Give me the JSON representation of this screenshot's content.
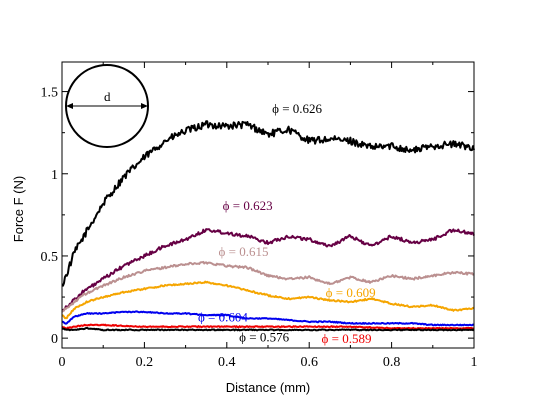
{
  "chart_data": {
    "type": "line",
    "title": "",
    "xlabel": "Distance (mm)",
    "ylabel": "Force F (N)",
    "xlim": [
      0,
      1
    ],
    "ylim": [
      -0.06,
      1.68
    ],
    "xticks": [
      0,
      0.2,
      0.4,
      0.6,
      0.8,
      1
    ],
    "xtick_labels": [
      "0",
      "0.2",
      "0.4",
      "0.6",
      "0.8",
      "1"
    ],
    "yticks": [
      0,
      0.5,
      1,
      1.5
    ],
    "ytick_labels": [
      "0",
      "0.5",
      "1",
      "1.5"
    ],
    "grid": false,
    "legend": "none",
    "inset": {
      "label": "d"
    },
    "series": [
      {
        "name": "ϕ = 0.626",
        "color": "#000000",
        "x": [
          0,
          0.01,
          0.03,
          0.06,
          0.1,
          0.15,
          0.2,
          0.25,
          0.3,
          0.35,
          0.4,
          0.45,
          0.5,
          0.55,
          0.6,
          0.65,
          0.7,
          0.75,
          0.8,
          0.85,
          0.9,
          0.95,
          1.0
        ],
        "y": [
          0.32,
          0.38,
          0.52,
          0.65,
          0.82,
          0.98,
          1.1,
          1.2,
          1.26,
          1.3,
          1.29,
          1.3,
          1.24,
          1.27,
          1.2,
          1.21,
          1.2,
          1.16,
          1.17,
          1.14,
          1.17,
          1.18,
          1.16
        ]
      },
      {
        "name": "ϕ = 0.623",
        "color": "#660044",
        "x": [
          0,
          0.02,
          0.05,
          0.1,
          0.15,
          0.2,
          0.25,
          0.3,
          0.35,
          0.4,
          0.45,
          0.5,
          0.55,
          0.6,
          0.65,
          0.7,
          0.75,
          0.8,
          0.85,
          0.9,
          0.95,
          1.0
        ],
        "y": [
          0.17,
          0.21,
          0.28,
          0.36,
          0.44,
          0.5,
          0.56,
          0.6,
          0.66,
          0.64,
          0.62,
          0.58,
          0.62,
          0.6,
          0.56,
          0.62,
          0.56,
          0.62,
          0.58,
          0.6,
          0.66,
          0.63
        ]
      },
      {
        "name": "ϕ = 0.615",
        "color": "#bb9090",
        "x": [
          0,
          0.02,
          0.05,
          0.1,
          0.15,
          0.2,
          0.25,
          0.3,
          0.35,
          0.4,
          0.45,
          0.5,
          0.55,
          0.6,
          0.65,
          0.7,
          0.75,
          0.8,
          0.85,
          0.9,
          0.95,
          1.0
        ],
        "y": [
          0.16,
          0.2,
          0.26,
          0.32,
          0.37,
          0.41,
          0.43,
          0.45,
          0.46,
          0.44,
          0.43,
          0.38,
          0.36,
          0.37,
          0.33,
          0.37,
          0.34,
          0.38,
          0.36,
          0.38,
          0.4,
          0.39
        ]
      },
      {
        "name": "ϕ = 0.609",
        "color": "#f5a500",
        "x": [
          0,
          0.01,
          0.03,
          0.06,
          0.1,
          0.15,
          0.2,
          0.25,
          0.3,
          0.35,
          0.4,
          0.45,
          0.5,
          0.55,
          0.6,
          0.65,
          0.7,
          0.75,
          0.8,
          0.85,
          0.9,
          0.95,
          1.0
        ],
        "y": [
          0.14,
          0.12,
          0.18,
          0.22,
          0.25,
          0.28,
          0.3,
          0.32,
          0.33,
          0.34,
          0.32,
          0.29,
          0.26,
          0.24,
          0.25,
          0.23,
          0.22,
          0.24,
          0.21,
          0.19,
          0.2,
          0.17,
          0.18
        ]
      },
      {
        "name": "ϕ = 0.604",
        "color": "#0000ee",
        "x": [
          0,
          0.01,
          0.03,
          0.06,
          0.1,
          0.15,
          0.2,
          0.25,
          0.3,
          0.35,
          0.4,
          0.45,
          0.5,
          0.55,
          0.6,
          0.65,
          0.7,
          0.75,
          0.8,
          0.85,
          0.9,
          0.95,
          1.0
        ],
        "y": [
          0.1,
          0.09,
          0.13,
          0.15,
          0.15,
          0.16,
          0.16,
          0.15,
          0.15,
          0.14,
          0.14,
          0.12,
          0.12,
          0.11,
          0.1,
          0.1,
          0.09,
          0.09,
          0.09,
          0.09,
          0.08,
          0.08,
          0.08
        ]
      },
      {
        "name": "ϕ = 0.589",
        "color": "#ee0000",
        "x": [
          0,
          0.01,
          0.03,
          0.06,
          0.1,
          0.2,
          0.3,
          0.4,
          0.5,
          0.6,
          0.7,
          0.8,
          0.9,
          1.0
        ],
        "y": [
          0.07,
          0.06,
          0.07,
          0.08,
          0.08,
          0.07,
          0.07,
          0.07,
          0.07,
          0.07,
          0.07,
          0.06,
          0.06,
          0.06
        ]
      },
      {
        "name": "ϕ = 0.576",
        "color": "#000000",
        "x": [
          0,
          0.01,
          0.03,
          0.06,
          0.1,
          0.2,
          0.3,
          0.4,
          0.5,
          0.6,
          0.7,
          0.8,
          0.9,
          1.0
        ],
        "y": [
          0.06,
          0.05,
          0.05,
          0.06,
          0.05,
          0.05,
          0.05,
          0.05,
          0.05,
          0.05,
          0.05,
          0.05,
          0.05,
          0.05
        ]
      }
    ],
    "annotations": [
      {
        "text": "ϕ = 0.626",
        "color": "#000000",
        "x": 0.51,
        "y": 1.37
      },
      {
        "text": "ϕ = 0.623",
        "color": "#660044",
        "x": 0.39,
        "y": 0.78
      },
      {
        "text": "ϕ = 0.615",
        "color": "#bb9090",
        "x": 0.38,
        "y": 0.5
      },
      {
        "text": "ϕ = 0.609",
        "color": "#f5a500",
        "x": 0.64,
        "y": 0.25
      },
      {
        "text": "ϕ = 0.604",
        "color": "#0000ee",
        "x": 0.33,
        "y": 0.1
      },
      {
        "text": "ϕ = 0.576",
        "color": "#000000",
        "x": 0.43,
        "y": -0.02
      },
      {
        "text": "ϕ = 0.589",
        "color": "#ee0000",
        "x": 0.63,
        "y": -0.03
      }
    ]
  }
}
